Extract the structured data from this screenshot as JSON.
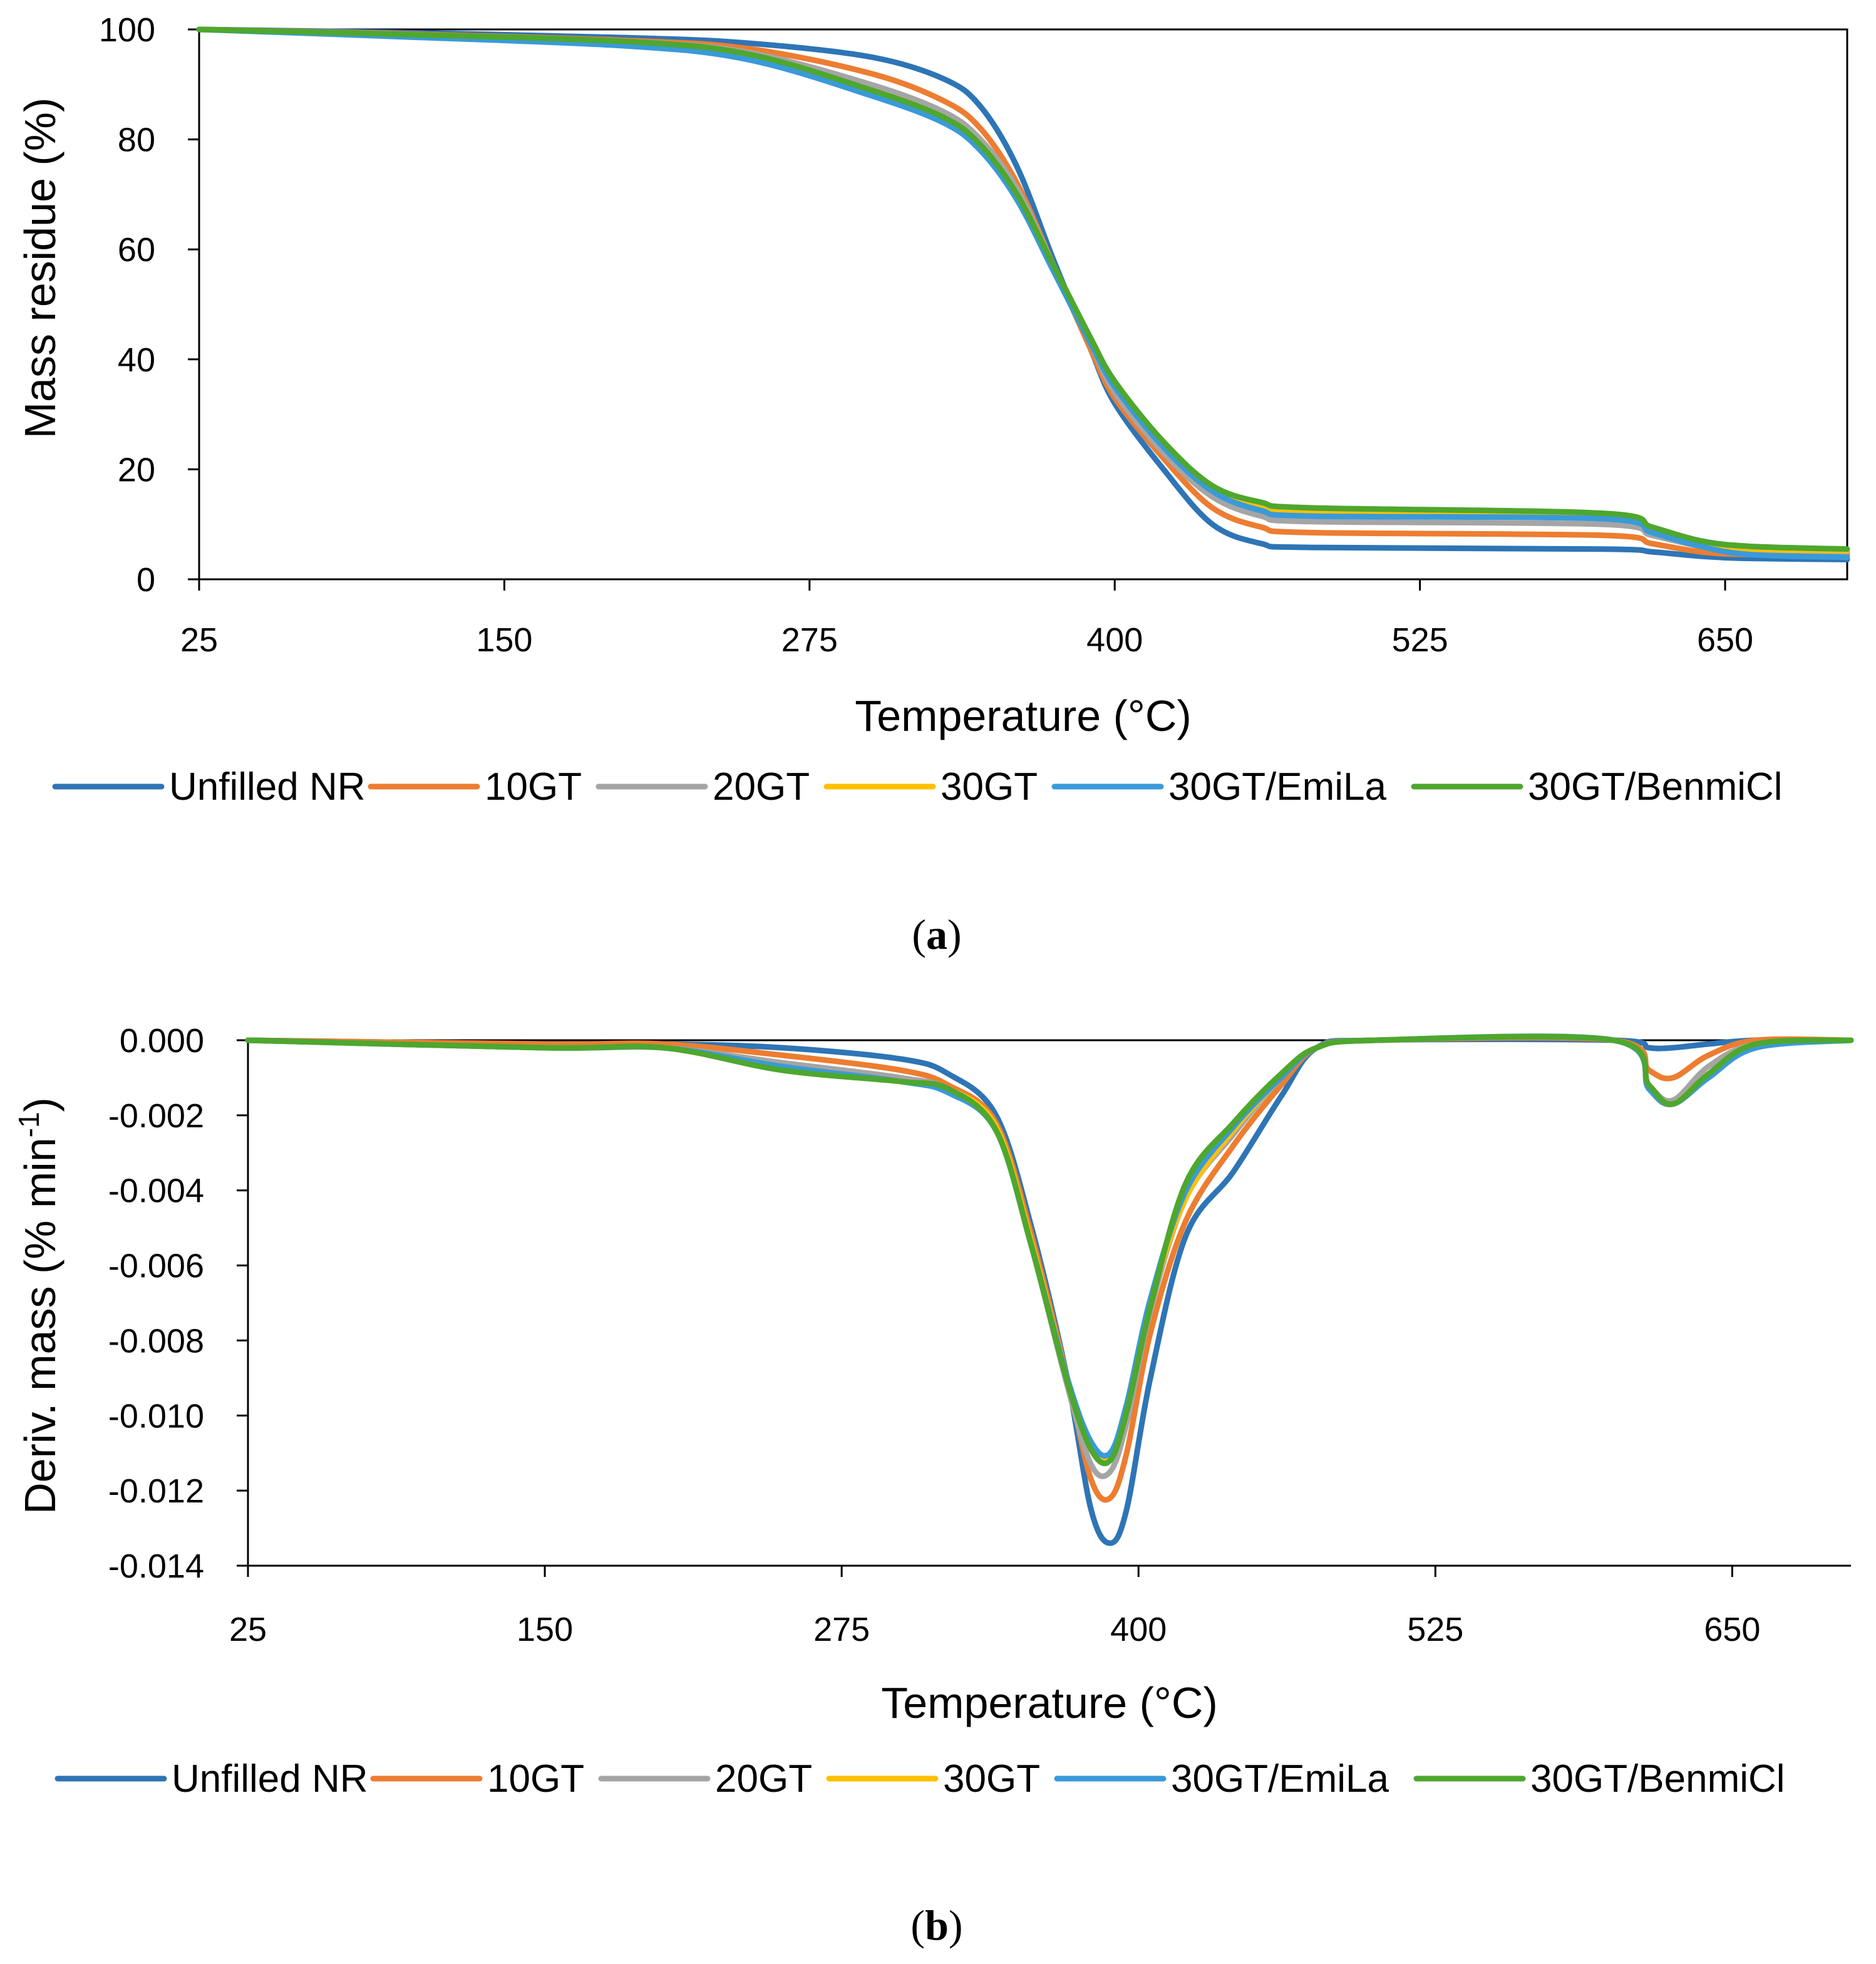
{
  "figure": {
    "panels": [
      {
        "label_open": "(",
        "label_letter": "a",
        "label_close": ")"
      },
      {
        "label_open": "(",
        "label_letter": "b",
        "label_close": ")"
      }
    ]
  },
  "series_colors": {
    "Unfilled NR": "#2E75B6",
    "10GT": "#ED7D31",
    "20GT": "#A5A5A5",
    "30GT": "#FFC000",
    "30GT/EmiLa": "#3A9AD9",
    "30GT/BenmiCl": "#4EA72E"
  },
  "chart_data": [
    {
      "type": "line",
      "title": "",
      "xlabel": "Temperature (°C)",
      "ylabel": "Mass residue (%)",
      "xlim": [
        25,
        700
      ],
      "ylim": [
        0,
        100
      ],
      "xticks": [
        25,
        150,
        275,
        400,
        525,
        650
      ],
      "yticks": [
        0,
        20,
        40,
        60,
        80,
        100
      ],
      "ytick_labels": [
        "0",
        "20",
        "40",
        "60",
        "80",
        "100"
      ],
      "grid": false,
      "legend_position": "bottom",
      "series": [
        {
          "name": "Unfilled NR",
          "x": [
            25,
            100,
            200,
            250,
            300,
            330,
            345,
            360,
            375,
            390,
            400,
            420,
            440,
            460,
            480,
            600,
            620,
            640,
            660,
            700
          ],
          "y": [
            100,
            99.5,
            98.5,
            97.5,
            95,
            91,
            86,
            75,
            58,
            42,
            32,
            20,
            10,
            6.5,
            5.8,
            5.5,
            5,
            4.2,
            3.8,
            3.6
          ]
        },
        {
          "name": "10GT",
          "x": [
            25,
            100,
            200,
            250,
            300,
            330,
            345,
            360,
            375,
            390,
            400,
            420,
            440,
            460,
            480,
            600,
            620,
            640,
            660,
            700
          ],
          "y": [
            100,
            99.3,
            98,
            96.5,
            92,
            87,
            82,
            72,
            57,
            42,
            33,
            22,
            13,
            9.5,
            8.5,
            8,
            6.5,
            5,
            4.5,
            4.5
          ]
        },
        {
          "name": "20GT",
          "x": [
            25,
            100,
            200,
            250,
            300,
            330,
            345,
            360,
            375,
            390,
            400,
            420,
            440,
            460,
            480,
            600,
            620,
            640,
            660,
            700
          ],
          "y": [
            100,
            99.2,
            97.8,
            95.8,
            90,
            85,
            80,
            71,
            57,
            43,
            34,
            23,
            15,
            11.5,
            10.5,
            10,
            8,
            6,
            5,
            5
          ]
        },
        {
          "name": "30GT",
          "x": [
            25,
            100,
            200,
            250,
            300,
            330,
            345,
            360,
            375,
            390,
            400,
            420,
            440,
            460,
            480,
            600,
            620,
            640,
            660,
            700
          ],
          "y": [
            100,
            99,
            97.5,
            95.2,
            89,
            84,
            79,
            70,
            57,
            43,
            35,
            24,
            16,
            13,
            12,
            11.5,
            9,
            6.5,
            5.5,
            5.2
          ]
        },
        {
          "name": "30GT/EmiLa",
          "x": [
            25,
            100,
            200,
            250,
            300,
            330,
            345,
            360,
            375,
            390,
            400,
            420,
            440,
            460,
            480,
            600,
            620,
            640,
            660,
            700
          ],
          "y": [
            100,
            98.8,
            97,
            94.5,
            88,
            83,
            78,
            69,
            56,
            43,
            35,
            24,
            16,
            12.5,
            11.5,
            11,
            8.5,
            6,
            4.5,
            4
          ]
        },
        {
          "name": "30GT/BenmiCl",
          "x": [
            25,
            100,
            200,
            250,
            300,
            330,
            345,
            360,
            375,
            390,
            400,
            420,
            440,
            460,
            480,
            600,
            620,
            640,
            660,
            700
          ],
          "y": [
            100,
            99.2,
            97.8,
            95.5,
            89,
            84,
            79,
            70,
            57,
            44,
            36,
            25,
            17,
            14,
            13,
            12,
            9.5,
            7,
            6,
            5.5
          ]
        }
      ]
    },
    {
      "type": "line",
      "title": "",
      "xlabel": "Temperature (°C)",
      "ylabel": "Deriv. mass (% min",
      "ylabel_superscript": "-1",
      "ylabel_close": ")",
      "xlim": [
        25,
        700
      ],
      "ylim": [
        -0.014,
        0
      ],
      "xticks": [
        25,
        150,
        275,
        400,
        525,
        650
      ],
      "yticks": [
        0,
        -0.002,
        -0.004,
        -0.006,
        -0.008,
        -0.01,
        -0.012,
        -0.014
      ],
      "ytick_labels": [
        "0.000",
        "-0.002",
        "-0.004",
        "-0.006",
        "-0.008",
        "-0.010",
        "-0.012",
        "-0.014"
      ],
      "grid": false,
      "legend_position": "bottom",
      "series": [
        {
          "name": "Unfilled NR",
          "x": [
            25,
            150,
            200,
            250,
            300,
            320,
            340,
            355,
            370,
            380,
            388,
            395,
            405,
            420,
            440,
            460,
            475,
            500,
            600,
            615,
            625,
            640,
            660,
            700
          ],
          "y": [
            0,
            -0.0001,
            -0.0001,
            -0.0002,
            -0.0005,
            -0.0009,
            -0.002,
            -0.005,
            -0.009,
            -0.0125,
            -0.0134,
            -0.0125,
            -0.009,
            -0.0052,
            -0.0035,
            -0.0015,
            -0.0002,
            0,
            0,
            -0.0002,
            -0.0002,
            -0.0001,
            0,
            0
          ]
        },
        {
          "name": "10GT",
          "x": [
            25,
            150,
            200,
            250,
            300,
            320,
            340,
            355,
            370,
            380,
            388,
            395,
            405,
            420,
            440,
            460,
            475,
            500,
            600,
            615,
            625,
            640,
            660,
            700
          ],
          "y": [
            0,
            -0.0001,
            -0.0001,
            -0.0004,
            -0.0008,
            -0.0012,
            -0.0022,
            -0.0052,
            -0.009,
            -0.0117,
            -0.0122,
            -0.011,
            -0.0078,
            -0.0048,
            -0.0028,
            -0.0012,
            -0.0002,
            0,
            0,
            -0.0008,
            -0.001,
            -0.0004,
            0,
            0
          ]
        },
        {
          "name": "20GT",
          "x": [
            25,
            150,
            200,
            250,
            300,
            320,
            340,
            355,
            370,
            380,
            388,
            395,
            405,
            420,
            440,
            460,
            475,
            500,
            600,
            615,
            625,
            640,
            660,
            700
          ],
          "y": [
            0,
            -0.0002,
            -0.0002,
            -0.0006,
            -0.001,
            -0.0013,
            -0.0023,
            -0.0055,
            -0.0092,
            -0.0113,
            -0.0115,
            -0.0102,
            -0.0072,
            -0.0042,
            -0.0025,
            -0.001,
            -0.0002,
            0,
            0,
            -0.0012,
            -0.0016,
            -0.0007,
            -0.0001,
            0
          ]
        },
        {
          "name": "30GT",
          "x": [
            25,
            150,
            200,
            250,
            300,
            320,
            340,
            355,
            370,
            380,
            388,
            395,
            405,
            420,
            440,
            460,
            475,
            500,
            600,
            615,
            625,
            640,
            660,
            700
          ],
          "y": [
            0,
            -0.0002,
            -0.0002,
            -0.0007,
            -0.0011,
            -0.0013,
            -0.0023,
            -0.0054,
            -0.009,
            -0.0108,
            -0.0111,
            -0.0098,
            -0.007,
            -0.0042,
            -0.0024,
            -0.001,
            -0.0002,
            0,
            0,
            -0.0013,
            -0.0017,
            -0.0009,
            -0.0001,
            0
          ]
        },
        {
          "name": "30GT/EmiLa",
          "x": [
            25,
            150,
            200,
            250,
            300,
            320,
            340,
            355,
            370,
            380,
            388,
            395,
            405,
            420,
            440,
            460,
            475,
            500,
            600,
            615,
            625,
            640,
            660,
            700
          ],
          "y": [
            0,
            -0.0002,
            -0.0002,
            -0.0007,
            -0.0011,
            -0.0014,
            -0.0024,
            -0.0055,
            -0.009,
            -0.0107,
            -0.011,
            -0.0097,
            -0.0069,
            -0.004,
            -0.0023,
            -0.001,
            -0.0002,
            0,
            0,
            -0.0013,
            -0.0017,
            -0.001,
            -0.0002,
            0
          ]
        },
        {
          "name": "30GT/BenmiCl",
          "x": [
            25,
            150,
            200,
            250,
            300,
            320,
            340,
            355,
            370,
            380,
            388,
            395,
            405,
            420,
            440,
            460,
            475,
            500,
            600,
            615,
            625,
            640,
            660,
            700
          ],
          "y": [
            0,
            -0.0002,
            -0.0002,
            -0.0008,
            -0.0011,
            -0.0013,
            -0.0024,
            -0.0055,
            -0.0091,
            -0.0109,
            -0.0112,
            -0.0099,
            -0.0071,
            -0.0038,
            -0.0022,
            -0.0009,
            -0.0002,
            0,
            0,
            -0.0012,
            -0.0017,
            -0.0009,
            -0.0001,
            0
          ]
        }
      ]
    }
  ]
}
